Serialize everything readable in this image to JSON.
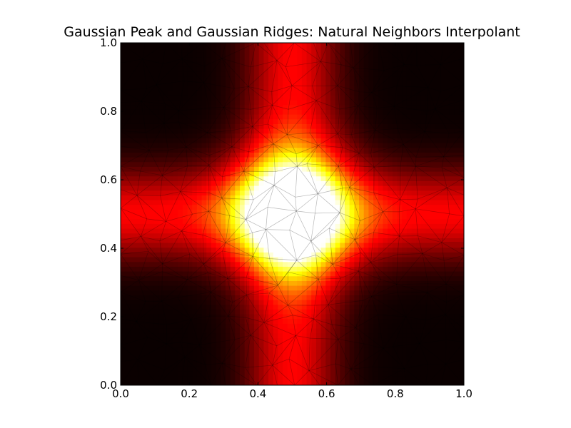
{
  "chart_data": {
    "type": "heatmap",
    "title": "Gaussian Peak and Gaussian Ridges: Natural Neighbors Interpolant",
    "xlabel": "",
    "ylabel": "",
    "xlim": [
      0.0,
      1.0
    ],
    "ylim": [
      0.0,
      1.0
    ],
    "x_ticks": [
      "0.0",
      "0.2",
      "0.4",
      "0.6",
      "0.8",
      "1.0"
    ],
    "y_ticks": [
      "0.0",
      "0.2",
      "0.4",
      "0.6",
      "0.8",
      "1.0"
    ],
    "x_tick_values": [
      0.0,
      0.2,
      0.4,
      0.6,
      0.8,
      1.0
    ],
    "y_tick_values": [
      0.0,
      0.2,
      0.4,
      0.6,
      0.8,
      1.0
    ],
    "colormap": "hot",
    "colormap_stops": [
      "#0a0000",
      "#ff0000",
      "#ffff00",
      "#ffffff"
    ],
    "grid": false,
    "overlay": "triangulation mesh",
    "mesh_color": "#000000",
    "function": {
      "peak_center": [
        0.5,
        0.5
      ],
      "peak_height": 1.0,
      "peak_width": 0.12,
      "ridge_height": 0.35,
      "ridge_width": 0.09
    },
    "colorbar_range": [
      0.0,
      1.0
    ]
  }
}
